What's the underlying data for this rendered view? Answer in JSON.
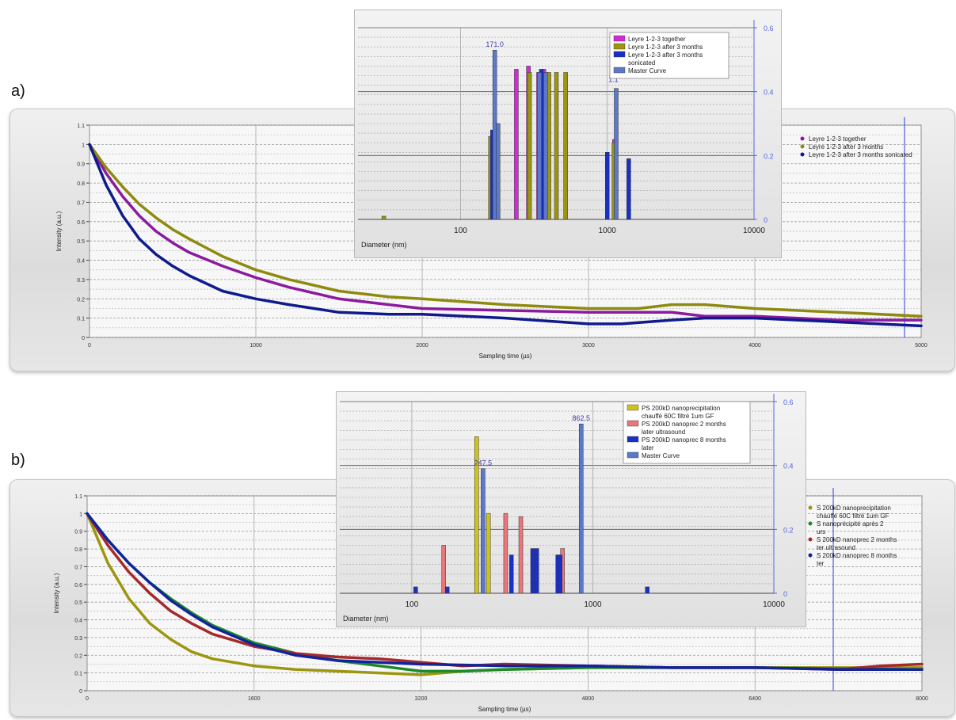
{
  "panel_a": {
    "label": "a)"
  },
  "panel_b": {
    "label": "b)"
  },
  "chart_data": [
    {
      "id": "a_main",
      "type": "line",
      "xlabel": "Sampling time (µs)",
      "ylabel": "Intensity (a.u.)",
      "xlim": [
        0,
        5000
      ],
      "ylim": [
        0,
        1.1
      ],
      "xticks": [
        0,
        1000,
        2000,
        3000,
        4000,
        5000
      ],
      "yticks": [
        0,
        0.1,
        0.2,
        0.3,
        0.4,
        0.5,
        0.6,
        0.7,
        0.8,
        0.9,
        1,
        1.1
      ],
      "ytick_labels": [
        "0",
        "0.1",
        "0.2",
        "0.3",
        "0.4",
        "0.5",
        "0.6",
        "0.7",
        "0.8",
        "0.9",
        "1",
        "1.1"
      ],
      "grid": true,
      "legend_position": "top-right",
      "cursor_x": 4900,
      "series": [
        {
          "name": "Leyre 1-2-3 together",
          "color": "#8b1a9e",
          "x": [
            0,
            100,
            200,
            300,
            400,
            500,
            600,
            800,
            1000,
            1200,
            1500,
            1800,
            2000,
            2500,
            3000,
            3500,
            3700,
            4000,
            4500,
            5000
          ],
          "values": [
            1.0,
            0.85,
            0.73,
            0.63,
            0.55,
            0.49,
            0.44,
            0.37,
            0.31,
            0.26,
            0.2,
            0.17,
            0.15,
            0.14,
            0.13,
            0.13,
            0.11,
            0.11,
            0.09,
            0.09
          ]
        },
        {
          "name": "Leyre 1-2-3 after 3 months",
          "color": "#8e8a10",
          "x": [
            0,
            100,
            200,
            300,
            400,
            500,
            600,
            800,
            1000,
            1200,
            1500,
            1800,
            2000,
            2500,
            3000,
            3300,
            3500,
            3700,
            4000,
            4500,
            5000
          ],
          "values": [
            1.0,
            0.88,
            0.78,
            0.69,
            0.62,
            0.56,
            0.51,
            0.42,
            0.35,
            0.3,
            0.24,
            0.21,
            0.2,
            0.17,
            0.15,
            0.15,
            0.17,
            0.17,
            0.15,
            0.13,
            0.11
          ]
        },
        {
          "name": "Leyre 1-2-3 after 3 months sonicated",
          "color": "#101a8c",
          "x": [
            0,
            100,
            200,
            300,
            400,
            500,
            600,
            800,
            1000,
            1200,
            1500,
            1800,
            2000,
            2500,
            3000,
            3200,
            3500,
            3700,
            4000,
            4500,
            5000
          ],
          "values": [
            1.0,
            0.79,
            0.63,
            0.51,
            0.43,
            0.37,
            0.32,
            0.24,
            0.2,
            0.17,
            0.13,
            0.12,
            0.12,
            0.1,
            0.07,
            0.07,
            0.09,
            0.1,
            0.1,
            0.08,
            0.06
          ]
        }
      ]
    },
    {
      "id": "a_inset",
      "type": "bar",
      "xlabel": "Diameter (nm)",
      "xscale": "log",
      "xlim": [
        20,
        10000
      ],
      "xtick_labels": [
        "100",
        "1000",
        "10000"
      ],
      "xticks": [
        100,
        1000,
        10000
      ],
      "ylim": [
        0,
        0.6
      ],
      "yticks": [
        0,
        0.2,
        0.4,
        0.6
      ],
      "ytick_labels": [
        "0",
        "0.2",
        "0.4",
        "0.6"
      ],
      "legend_position": "top-right",
      "peak_labels": [
        {
          "text": "171.0",
          "x": 171,
          "y": 0.53
        },
        {
          "text": "1.1",
          "x": 1100,
          "y": 0.42
        }
      ],
      "series": [
        {
          "name": "Leyre 1-2-3 together",
          "color": "#d22ad6",
          "x": [
            240,
            290,
            340,
            370,
            1120
          ],
          "values": [
            0.47,
            0.48,
            0.46,
            0.47,
            0.25
          ]
        },
        {
          "name": "Leyre 1-2-3 after 3 months",
          "color": "#9b950f",
          "x": [
            30,
            160,
            295,
            400,
            450,
            520,
            1110
          ],
          "values": [
            0.01,
            0.26,
            0.46,
            0.46,
            0.46,
            0.46,
            0.24
          ]
        },
        {
          "name": "Leyre 1-2-3 after 3 months\nsonicated",
          "color": "#1a2fc4",
          "x": [
            165,
            355,
            1000,
            1400
          ],
          "values": [
            0.28,
            0.47,
            0.21,
            0.19
          ]
        },
        {
          "name": "Master Curve",
          "color": "#5c78c8",
          "x": [
            171,
            180,
            345,
            380,
            1150
          ],
          "values": [
            0.53,
            0.3,
            0.46,
            0.46,
            0.41
          ]
        }
      ]
    },
    {
      "id": "b_main",
      "type": "line",
      "xlabel": "Sampling time (µs)",
      "ylabel": "Intensity (a.u.)",
      "xlim": [
        0,
        8000
      ],
      "ylim": [
        0,
        1.1
      ],
      "xticks": [
        0,
        1600,
        3200,
        4800,
        6400,
        8000
      ],
      "yticks": [
        0,
        0.1,
        0.2,
        0.3,
        0.4,
        0.5,
        0.6,
        0.7,
        0.8,
        0.9,
        1,
        1.1
      ],
      "ytick_labels": [
        "0",
        "0.1",
        "0.2",
        "0.3",
        "0.4",
        "0.5",
        "0.6",
        "0.7",
        "0.8",
        "0.9",
        "1",
        "1.1"
      ],
      "grid": true,
      "legend_position": "top-right",
      "cursor_x": 7150,
      "series": [
        {
          "name": "S 200kD nanoprecipitation\nchauffé 60C filtré 1um GF",
          "color": "#9c9610",
          "x": [
            0,
            200,
            400,
            600,
            800,
            1000,
            1200,
            1600,
            2000,
            2400,
            3200,
            3600,
            4000,
            4800,
            6400,
            8000
          ],
          "values": [
            1.0,
            0.72,
            0.52,
            0.38,
            0.29,
            0.22,
            0.18,
            0.14,
            0.12,
            0.11,
            0.09,
            0.11,
            0.12,
            0.13,
            0.13,
            0.13
          ]
        },
        {
          "name": "S nanoprécipité après 2\nurs",
          "color": "#1c8a2a",
          "x": [
            0,
            200,
            400,
            600,
            800,
            1000,
            1200,
            1600,
            2000,
            2400,
            2800,
            3200,
            3600,
            4000,
            4800,
            6400,
            8000
          ],
          "values": [
            1.0,
            0.85,
            0.72,
            0.61,
            0.52,
            0.44,
            0.37,
            0.27,
            0.21,
            0.17,
            0.14,
            0.11,
            0.11,
            0.12,
            0.13,
            0.13,
            0.12
          ]
        },
        {
          "name": "S 200kD nanoprec 2 months\nter ultrasound",
          "color": "#a52a2a",
          "x": [
            0,
            200,
            400,
            600,
            800,
            1000,
            1200,
            1600,
            2000,
            2400,
            2800,
            3200,
            3600,
            4000,
            4800,
            5600,
            6400,
            7200,
            7600,
            8000
          ],
          "values": [
            1.0,
            0.82,
            0.67,
            0.55,
            0.45,
            0.38,
            0.32,
            0.25,
            0.21,
            0.19,
            0.18,
            0.16,
            0.14,
            0.15,
            0.14,
            0.13,
            0.13,
            0.12,
            0.14,
            0.15
          ]
        },
        {
          "name": "S 200kD nanoprec 8 months\nter",
          "color": "#12239c",
          "x": [
            0,
            200,
            400,
            600,
            800,
            1000,
            1200,
            1600,
            2000,
            2400,
            2800,
            3200,
            4000,
            4800,
            5600,
            6400,
            7200,
            8000
          ],
          "values": [
            1.0,
            0.85,
            0.72,
            0.61,
            0.51,
            0.43,
            0.36,
            0.26,
            0.2,
            0.17,
            0.16,
            0.15,
            0.14,
            0.14,
            0.13,
            0.13,
            0.12,
            0.12
          ]
        }
      ]
    },
    {
      "id": "b_inset",
      "type": "bar",
      "xlabel": "Diameter (nm)",
      "xscale": "log",
      "xlim": [
        40,
        10000
      ],
      "xtick_labels": [
        "100",
        "1000",
        "10000"
      ],
      "xticks": [
        100,
        1000,
        10000
      ],
      "ylim": [
        0,
        0.6
      ],
      "yticks": [
        0,
        0.2,
        0.4,
        0.6
      ],
      "ytick_labels": [
        "0",
        "0.2",
        "0.4",
        "0.6"
      ],
      "legend_position": "top-right",
      "peak_labels": [
        {
          "text": "247.5",
          "x": 247.5,
          "y": 0.39
        },
        {
          "text": "862.5",
          "x": 862.5,
          "y": 0.53
        }
      ],
      "series": [
        {
          "name": "PS 200kD nanoprecipitation\nchauffé 60C filtré 1um GF",
          "color": "#cfc31a",
          "x": [
            228,
            265
          ],
          "values": [
            0.49,
            0.25
          ]
        },
        {
          "name": "PS 200kD nanoprec 2 months\nlater ultrasound",
          "color": "#e8767a",
          "x": [
            150,
            330,
            400,
            680
          ],
          "values": [
            0.15,
            0.25,
            0.24,
            0.14
          ]
        },
        {
          "name": "PS 200kD nanoprec 8 months\nlater",
          "color": "#1a2fc4",
          "x": [
            105,
            157,
            355,
            465,
            490,
            640,
            660,
            2000
          ],
          "values": [
            0.02,
            0.02,
            0.12,
            0.14,
            0.14,
            0.12,
            0.12,
            0.02
          ]
        },
        {
          "name": "Master Curve",
          "color": "#5c78c8",
          "x": [
            247.5,
            862.5
          ],
          "values": [
            0.39,
            0.53
          ]
        }
      ]
    }
  ]
}
